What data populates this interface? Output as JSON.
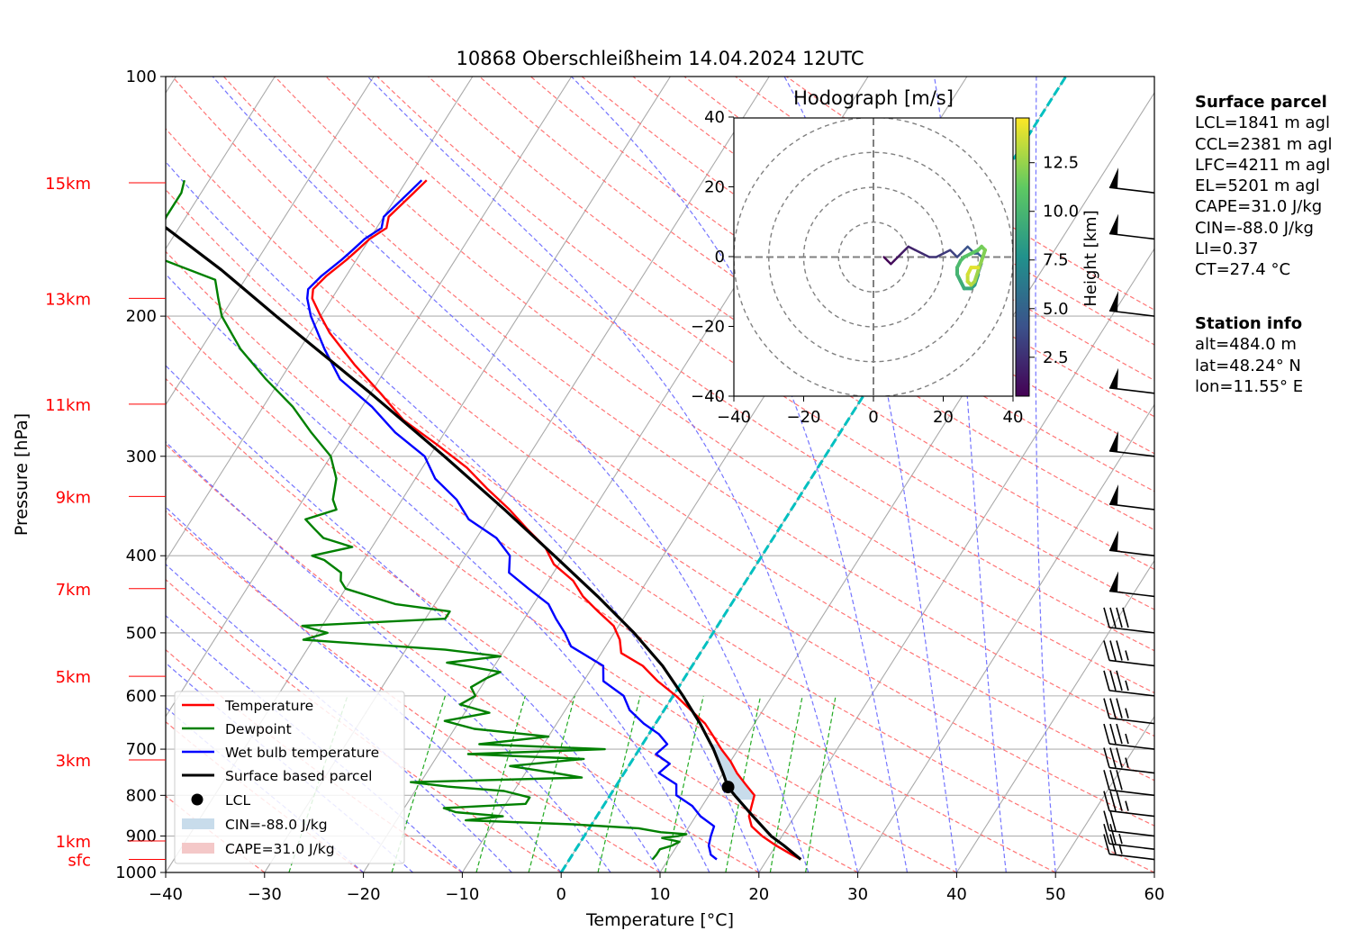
{
  "title": "10868 Oberschleißheim 14.04.2024 12UTC",
  "chart_data": {
    "type": "line",
    "xlabel": "Temperature [°C]",
    "ylabel": "Pressure [hPa]",
    "xlim": [
      -40,
      60
    ],
    "ylim": [
      1000,
      100
    ],
    "y_scale": "log",
    "skew": "skew-T",
    "grid": true,
    "x_ticks": [
      "−40",
      "−30",
      "−20",
      "−10",
      "0",
      "10",
      "20",
      "30",
      "40",
      "50",
      "60"
    ],
    "y_ticks": [
      "100",
      "200",
      "300",
      "400",
      "500",
      "600",
      "700",
      "800",
      "900",
      "1000"
    ],
    "height_labels": [
      {
        "p": 963,
        "label": "sfc"
      },
      {
        "p": 913,
        "label": "1km"
      },
      {
        "p": 722,
        "label": "3km"
      },
      {
        "p": 567,
        "label": "5km"
      },
      {
        "p": 440,
        "label": "7km"
      },
      {
        "p": 337,
        "label": "9km"
      },
      {
        "p": 258,
        "label": "11km"
      },
      {
        "p": 190,
        "label": "13km"
      },
      {
        "p": 136,
        "label": "15km"
      }
    ],
    "series": [
      {
        "name": "Temperature",
        "color": "#ff0000",
        "points": [
          [
            963,
            23.4
          ],
          [
            950,
            22.2
          ],
          [
            925,
            20.0
          ],
          [
            900,
            18.0
          ],
          [
            875,
            16.3
          ],
          [
            850,
            15.4
          ],
          [
            825,
            15.0
          ],
          [
            800,
            14.6
          ],
          [
            775,
            13.0
          ],
          [
            750,
            11.4
          ],
          [
            725,
            10.0
          ],
          [
            700,
            8.3
          ],
          [
            675,
            6.7
          ],
          [
            650,
            5.0
          ],
          [
            625,
            2.7
          ],
          [
            600,
            0.3
          ],
          [
            575,
            -2.5
          ],
          [
            550,
            -5.0
          ],
          [
            530,
            -8.0
          ],
          [
            510,
            -9.0
          ],
          [
            490,
            -10.5
          ],
          [
            470,
            -13.0
          ],
          [
            450,
            -15.5
          ],
          [
            430,
            -17.5
          ],
          [
            410,
            -20.5
          ],
          [
            390,
            -22.5
          ],
          [
            370,
            -25.5
          ],
          [
            350,
            -28.5
          ],
          [
            330,
            -32.0
          ],
          [
            310,
            -35.5
          ],
          [
            290,
            -40.0
          ],
          [
            270,
            -45.0
          ],
          [
            250,
            -49.0
          ],
          [
            230,
            -53.5
          ],
          [
            210,
            -58.0
          ],
          [
            200,
            -60.0
          ],
          [
            190,
            -62.0
          ],
          [
            185,
            -62.5
          ],
          [
            178,
            -62.0
          ],
          [
            170,
            -61.0
          ],
          [
            165,
            -60.5
          ],
          [
            160,
            -60.0
          ],
          [
            155,
            -59.0
          ],
          [
            150,
            -59.5
          ],
          [
            145,
            -59.0
          ],
          [
            140,
            -58.5
          ],
          [
            135,
            -58.0
          ]
        ]
      },
      {
        "name": "Dewpoint",
        "color": "#008000",
        "points": [
          [
            963,
            8.4
          ],
          [
            950,
            8.5
          ],
          [
            935,
            8.5
          ],
          [
            925,
            9.5
          ],
          [
            915,
            10.0
          ],
          [
            905,
            8.0
          ],
          [
            900,
            9.5
          ],
          [
            895,
            10.2
          ],
          [
            890,
            7.5
          ],
          [
            880,
            5.0
          ],
          [
            870,
            -2.0
          ],
          [
            860,
            -13.0
          ],
          [
            850,
            -9.5
          ],
          [
            840,
            -14.5
          ],
          [
            830,
            -16.0
          ],
          [
            820,
            -8.0
          ],
          [
            805,
            -8.0
          ],
          [
            790,
            -11.0
          ],
          [
            780,
            -17.0
          ],
          [
            770,
            -21.0
          ],
          [
            760,
            -4.0
          ],
          [
            750,
            -7.0
          ],
          [
            735,
            -12.0
          ],
          [
            720,
            -5.0
          ],
          [
            710,
            -17.0
          ],
          [
            700,
            -3.5
          ],
          [
            690,
            -16.5
          ],
          [
            675,
            -10.0
          ],
          [
            660,
            -18.0
          ],
          [
            645,
            -21.5
          ],
          [
            630,
            -17.5
          ],
          [
            615,
            -21.0
          ],
          [
            600,
            -20.0
          ],
          [
            585,
            -21.0
          ],
          [
            570,
            -20.0
          ],
          [
            560,
            -19.0
          ],
          [
            545,
            -25.0
          ],
          [
            535,
            -20.0
          ],
          [
            525,
            -26.0
          ],
          [
            510,
            -41.0
          ],
          [
            500,
            -39.0
          ],
          [
            490,
            -42.0
          ],
          [
            480,
            -28.0
          ],
          [
            470,
            -28.0
          ],
          [
            460,
            -34.0
          ],
          [
            450,
            -37.0
          ],
          [
            440,
            -40.0
          ],
          [
            430,
            -41.0
          ],
          [
            420,
            -41.5
          ],
          [
            405,
            -44.0
          ],
          [
            400,
            -45.5
          ],
          [
            390,
            -42.0
          ],
          [
            380,
            -45.5
          ],
          [
            370,
            -47.0
          ],
          [
            360,
            -48.5
          ],
          [
            350,
            -46.0
          ],
          [
            340,
            -47.0
          ],
          [
            320,
            -48.0
          ],
          [
            300,
            -50.0
          ],
          [
            280,
            -53.5
          ],
          [
            260,
            -57.0
          ],
          [
            240,
            -61.5
          ],
          [
            220,
            -66.0
          ],
          [
            200,
            -70.0
          ],
          [
            190,
            -71.5
          ],
          [
            180,
            -73.0
          ],
          [
            170,
            -79.5
          ],
          [
            160,
            -81.5
          ],
          [
            150,
            -82.0
          ],
          [
            140,
            -82.0
          ],
          [
            135,
            -82.5
          ]
        ]
      },
      {
        "name": "Wet bulb temperature",
        "color": "#0000ff",
        "points": [
          [
            963,
            14.9
          ],
          [
            950,
            14.0
          ],
          [
            925,
            13.2
          ],
          [
            900,
            12.8
          ],
          [
            875,
            12.5
          ],
          [
            850,
            10.5
          ],
          [
            825,
            9.0
          ],
          [
            800,
            6.7
          ],
          [
            775,
            6.0
          ],
          [
            750,
            3.5
          ],
          [
            730,
            4.0
          ],
          [
            710,
            2.0
          ],
          [
            690,
            2.5
          ],
          [
            670,
            1.0
          ],
          [
            650,
            -1.2
          ],
          [
            625,
            -3.5
          ],
          [
            600,
            -5.0
          ],
          [
            575,
            -8.0
          ],
          [
            550,
            -9.0
          ],
          [
            520,
            -13.5
          ],
          [
            500,
            -15.0
          ],
          [
            480,
            -16.8
          ],
          [
            460,
            -18.5
          ],
          [
            440,
            -21.5
          ],
          [
            420,
            -24.5
          ],
          [
            400,
            -25.5
          ],
          [
            380,
            -28.0
          ],
          [
            360,
            -32.0
          ],
          [
            340,
            -34.5
          ],
          [
            320,
            -38.0
          ],
          [
            300,
            -40.5
          ],
          [
            280,
            -45.0
          ],
          [
            260,
            -49.0
          ],
          [
            240,
            -54.0
          ],
          [
            220,
            -57.5
          ],
          [
            200,
            -61.0
          ],
          [
            190,
            -62.5
          ],
          [
            185,
            -63.0
          ],
          [
            178,
            -62.5
          ],
          [
            170,
            -61.5
          ],
          [
            165,
            -61.0
          ],
          [
            160,
            -60.5
          ],
          [
            155,
            -59.5
          ],
          [
            150,
            -60.0
          ],
          [
            145,
            -59.5
          ],
          [
            140,
            -59.0
          ],
          [
            135,
            -58.5
          ]
        ]
      },
      {
        "name": "Surface based parcel",
        "color": "#000000",
        "points": [
          [
            963,
            23.4
          ],
          [
            925,
            20.8
          ],
          [
            900,
            18.9
          ],
          [
            850,
            15.8
          ],
          [
            800,
            12.6
          ],
          [
            781,
            11.4
          ],
          [
            750,
            10.0
          ],
          [
            700,
            7.5
          ],
          [
            650,
            4.5
          ],
          [
            600,
            1.0
          ],
          [
            550,
            -3.0
          ],
          [
            500,
            -8.0
          ],
          [
            450,
            -14.0
          ],
          [
            400,
            -21.0
          ],
          [
            350,
            -29.0
          ],
          [
            300,
            -38.5
          ],
          [
            250,
            -50.0
          ],
          [
            200,
            -64.5
          ],
          [
            175,
            -73.0
          ],
          [
            150,
            -83.5
          ],
          [
            135,
            -90.0
          ]
        ]
      }
    ],
    "lcl_point": {
      "p": 781,
      "t": 11.4
    },
    "cin_label": "CIN=-88.0 J/kg",
    "cape_label": "CAPE=31.0 J/kg",
    "legend": [
      "Temperature",
      "Dewpoint",
      "Wet bulb temperature",
      "Surface based parcel",
      "LCL",
      "CIN=-88.0 J/kg",
      "CAPE=31.0 J/kg"
    ],
    "legend_position": "lower-left",
    "winds": [
      {
        "p": 963,
        "speed_ms": 12
      },
      {
        "p": 935,
        "speed_ms": 12
      },
      {
        "p": 900,
        "speed_ms": 11
      },
      {
        "p": 850,
        "speed_ms": 17
      },
      {
        "p": 800,
        "speed_ms": 16
      },
      {
        "p": 750,
        "speed_ms": 17
      },
      {
        "p": 700,
        "speed_ms": 17
      },
      {
        "p": 650,
        "speed_ms": 18
      },
      {
        "p": 600,
        "speed_ms": 18
      },
      {
        "p": 550,
        "speed_ms": 18
      },
      {
        "p": 500,
        "speed_ms": 20
      },
      {
        "p": 450,
        "speed_ms": 26
      },
      {
        "p": 400,
        "speed_ms": 26
      },
      {
        "p": 350,
        "speed_ms": 26
      },
      {
        "p": 300,
        "speed_ms": 26
      },
      {
        "p": 250,
        "speed_ms": 26
      },
      {
        "p": 200,
        "speed_ms": 26
      },
      {
        "p": 160,
        "speed_ms": 26
      },
      {
        "p": 140,
        "speed_ms": 27
      }
    ],
    "hodograph": {
      "title": "Hodograph [m/s]",
      "xlim": [
        -40,
        40
      ],
      "ylim": [
        -40,
        40
      ],
      "ticks": [
        "−40",
        "−20",
        "0",
        "20",
        "40"
      ],
      "rings": [
        10,
        20,
        30,
        40
      ],
      "colorbar_label": "Height [km]",
      "colorbar_ticks": [
        "2.5",
        "5.0",
        "7.5",
        "10.0",
        "12.5"
      ],
      "colorbar_range": [
        0.5,
        14.8
      ],
      "colormap": "viridis",
      "points": [
        [
          3,
          0
        ],
        [
          4,
          -1
        ],
        [
          5,
          -2
        ],
        [
          6,
          -1
        ],
        [
          7,
          0
        ],
        [
          8,
          1
        ],
        [
          9,
          2
        ],
        [
          10,
          3
        ],
        [
          12,
          2
        ],
        [
          14,
          1
        ],
        [
          16,
          0
        ],
        [
          18,
          0
        ],
        [
          20,
          1
        ],
        [
          22,
          2
        ],
        [
          23,
          1
        ],
        [
          24,
          0
        ],
        [
          25,
          1
        ],
        [
          26,
          2
        ],
        [
          27,
          3
        ],
        [
          28,
          2
        ],
        [
          29,
          1
        ],
        [
          30,
          1
        ],
        [
          31,
          0
        ],
        [
          31,
          -2
        ],
        [
          30,
          -5
        ],
        [
          29,
          -8
        ],
        [
          28,
          -9
        ],
        [
          26,
          -9
        ],
        [
          25,
          -7
        ],
        [
          24,
          -5
        ],
        [
          24,
          -3
        ],
        [
          25,
          -1
        ],
        [
          26,
          0
        ],
        [
          28,
          1
        ],
        [
          30,
          2
        ],
        [
          31,
          3
        ],
        [
          32,
          2
        ],
        [
          31,
          -1
        ],
        [
          30,
          -4
        ],
        [
          29,
          -7
        ],
        [
          28,
          -8
        ],
        [
          27,
          -7
        ],
        [
          27,
          -5
        ],
        [
          28,
          -3
        ],
        [
          30,
          -3
        ]
      ]
    }
  },
  "surface_parcel": {
    "heading": "Surface parcel",
    "lines": [
      "LCL=1841 m agl",
      "CCL=2381 m agl",
      "LFC=4211 m agl",
      "EL=5201 m agl",
      "CAPE=31.0 J/kg",
      "CIN=-88.0 J/kg",
      "LI=0.37",
      "CT=27.4 °C"
    ]
  },
  "station_info": {
    "heading": "Station info",
    "lines": [
      "alt=484.0 m",
      "lat=48.24° N",
      "lon=11.55° E"
    ]
  },
  "colors": {
    "temperature": "#ff0000",
    "dewpoint": "#008000",
    "wetbulb": "#0000ff",
    "parcel": "#000000",
    "dry_adiabat": "#ff6666",
    "moist_adiabat": "#6666ff",
    "mixing_ratio": "#22aa22",
    "isotherm_zero": "#00c0c0",
    "height_label": "#ff0000",
    "cin_fill": "#c8dceb",
    "cape_fill": "#f4c8c8"
  }
}
